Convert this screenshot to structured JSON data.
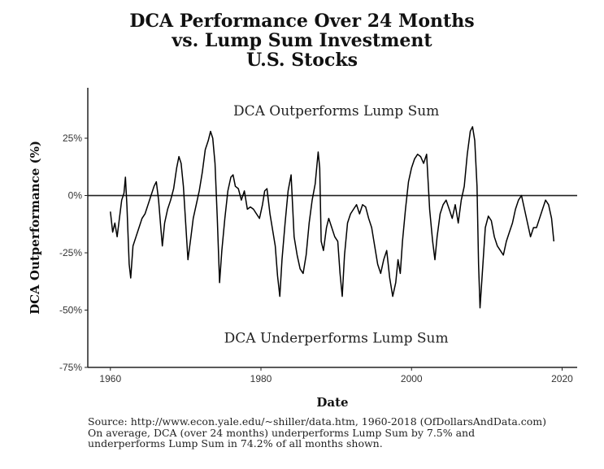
{
  "chart_data": {
    "type": "line",
    "title_lines": [
      "DCA Performance Over 24 Months",
      "vs. Lump Sum Investment",
      "U.S. Stocks"
    ],
    "xlabel": "Date",
    "ylabel": "DCA Outperformance (%)",
    "xlim": [
      1957,
      2022
    ],
    "ylim": [
      -75,
      47
    ],
    "x_ticks": [
      1960,
      1980,
      2000,
      2020
    ],
    "x_tick_labels": [
      "1960",
      "1980",
      "2000",
      "2020"
    ],
    "y_ticks": [
      25,
      0,
      -25,
      -50,
      -75
    ],
    "y_tick_labels": [
      "25%",
      "0%",
      "-25%",
      "-50%",
      "-75%"
    ],
    "grid": false,
    "reference_line": 0,
    "annotations": [
      {
        "text": "DCA Outperforms Lump Sum",
        "x": 1990,
        "y": 37
      },
      {
        "text": "DCA Underperforms Lump Sum",
        "x": 1990,
        "y": -62
      }
    ],
    "series": [
      {
        "color": "#000000",
        "points": [
          [
            1960.0,
            -7
          ],
          [
            1960.3,
            -16
          ],
          [
            1960.6,
            -12
          ],
          [
            1960.9,
            -18
          ],
          [
            1961.2,
            -10
          ],
          [
            1961.5,
            -2
          ],
          [
            1961.8,
            1
          ],
          [
            1962.0,
            8
          ],
          [
            1962.2,
            -5
          ],
          [
            1962.5,
            -30
          ],
          [
            1962.7,
            -36
          ],
          [
            1963.0,
            -22
          ],
          [
            1963.4,
            -18
          ],
          [
            1963.8,
            -14
          ],
          [
            1964.2,
            -10
          ],
          [
            1964.6,
            -8
          ],
          [
            1965.0,
            -4
          ],
          [
            1965.4,
            0
          ],
          [
            1965.8,
            4
          ],
          [
            1966.1,
            6
          ],
          [
            1966.4,
            -2
          ],
          [
            1966.7,
            -14
          ],
          [
            1966.9,
            -22
          ],
          [
            1967.2,
            -12
          ],
          [
            1967.6,
            -6
          ],
          [
            1968.0,
            -2
          ],
          [
            1968.4,
            3
          ],
          [
            1968.8,
            12
          ],
          [
            1969.1,
            17
          ],
          [
            1969.4,
            14
          ],
          [
            1969.7,
            4
          ],
          [
            1970.0,
            -12
          ],
          [
            1970.3,
            -28
          ],
          [
            1970.7,
            -18
          ],
          [
            1971.0,
            -10
          ],
          [
            1971.4,
            -4
          ],
          [
            1971.8,
            2
          ],
          [
            1972.2,
            10
          ],
          [
            1972.6,
            20
          ],
          [
            1973.0,
            24
          ],
          [
            1973.3,
            28
          ],
          [
            1973.6,
            25
          ],
          [
            1973.9,
            14
          ],
          [
            1974.2,
            -10
          ],
          [
            1974.5,
            -38
          ],
          [
            1974.8,
            -24
          ],
          [
            1975.2,
            -10
          ],
          [
            1975.6,
            2
          ],
          [
            1976.0,
            8
          ],
          [
            1976.3,
            9
          ],
          [
            1976.6,
            4
          ],
          [
            1977.0,
            3
          ],
          [
            1977.4,
            -2
          ],
          [
            1977.8,
            2
          ],
          [
            1978.2,
            -6
          ],
          [
            1978.6,
            -5
          ],
          [
            1979.0,
            -6
          ],
          [
            1979.4,
            -8
          ],
          [
            1979.8,
            -10
          ],
          [
            1980.2,
            -4
          ],
          [
            1980.5,
            2
          ],
          [
            1980.8,
            3
          ],
          [
            1981.2,
            -8
          ],
          [
            1981.6,
            -16
          ],
          [
            1981.9,
            -22
          ],
          [
            1982.2,
            -35
          ],
          [
            1982.5,
            -44
          ],
          [
            1982.8,
            -28
          ],
          [
            1983.2,
            -12
          ],
          [
            1983.6,
            2
          ],
          [
            1984.0,
            9
          ],
          [
            1984.4,
            -18
          ],
          [
            1984.8,
            -26
          ],
          [
            1985.2,
            -32
          ],
          [
            1985.6,
            -34
          ],
          [
            1986.0,
            -26
          ],
          [
            1986.4,
            -12
          ],
          [
            1986.8,
            -2
          ],
          [
            1987.2,
            5
          ],
          [
            1987.6,
            19
          ],
          [
            1987.8,
            12
          ],
          [
            1988.0,
            -20
          ],
          [
            1988.3,
            -24
          ],
          [
            1988.7,
            -14
          ],
          [
            1989.0,
            -10
          ],
          [
            1989.4,
            -14
          ],
          [
            1989.8,
            -18
          ],
          [
            1990.2,
            -20
          ],
          [
            1990.5,
            -34
          ],
          [
            1990.8,
            -44
          ],
          [
            1991.1,
            -26
          ],
          [
            1991.5,
            -12
          ],
          [
            1991.9,
            -8
          ],
          [
            1992.3,
            -6
          ],
          [
            1992.7,
            -4
          ],
          [
            1993.1,
            -8
          ],
          [
            1993.5,
            -4
          ],
          [
            1993.9,
            -5
          ],
          [
            1994.3,
            -10
          ],
          [
            1994.7,
            -14
          ],
          [
            1995.1,
            -22
          ],
          [
            1995.5,
            -30
          ],
          [
            1995.9,
            -34
          ],
          [
            1996.3,
            -28
          ],
          [
            1996.7,
            -24
          ],
          [
            1997.1,
            -36
          ],
          [
            1997.5,
            -44
          ],
          [
            1997.9,
            -38
          ],
          [
            1998.2,
            -28
          ],
          [
            1998.5,
            -34
          ],
          [
            1998.8,
            -20
          ],
          [
            1999.2,
            -6
          ],
          [
            1999.6,
            6
          ],
          [
            2000.0,
            12
          ],
          [
            2000.4,
            16
          ],
          [
            2000.8,
            18
          ],
          [
            2001.2,
            17
          ],
          [
            2001.6,
            14
          ],
          [
            2002.0,
            18
          ],
          [
            2002.4,
            -6
          ],
          [
            2002.8,
            -20
          ],
          [
            2003.1,
            -28
          ],
          [
            2003.4,
            -18
          ],
          [
            2003.8,
            -8
          ],
          [
            2004.2,
            -4
          ],
          [
            2004.6,
            -2
          ],
          [
            2005.0,
            -6
          ],
          [
            2005.4,
            -10
          ],
          [
            2005.8,
            -4
          ],
          [
            2006.2,
            -12
          ],
          [
            2006.6,
            -2
          ],
          [
            2007.0,
            4
          ],
          [
            2007.4,
            18
          ],
          [
            2007.8,
            28
          ],
          [
            2008.1,
            30
          ],
          [
            2008.4,
            24
          ],
          [
            2008.7,
            4
          ],
          [
            2008.9,
            -30
          ],
          [
            2009.1,
            -49
          ],
          [
            2009.4,
            -34
          ],
          [
            2009.8,
            -14
          ],
          [
            2010.2,
            -9
          ],
          [
            2010.6,
            -11
          ],
          [
            2011.0,
            -18
          ],
          [
            2011.4,
            -22
          ],
          [
            2011.8,
            -24
          ],
          [
            2012.2,
            -26
          ],
          [
            2012.6,
            -20
          ],
          [
            2013.0,
            -16
          ],
          [
            2013.4,
            -12
          ],
          [
            2013.8,
            -6
          ],
          [
            2014.2,
            -2
          ],
          [
            2014.6,
            0
          ],
          [
            2015.0,
            -6
          ],
          [
            2015.4,
            -12
          ],
          [
            2015.8,
            -18
          ],
          [
            2016.2,
            -14
          ],
          [
            2016.6,
            -14
          ],
          [
            2017.0,
            -10
          ],
          [
            2017.4,
            -6
          ],
          [
            2017.8,
            -2
          ],
          [
            2018.2,
            -4
          ],
          [
            2018.6,
            -10
          ],
          [
            2018.9,
            -20
          ]
        ]
      }
    ]
  },
  "footer": {
    "source_lines": [
      "Source:  http://www.econ.yale.edu/~shiller/data.htm, 1960-2018 (OfDollarsAndData.com)",
      "On average, DCA (over 24 months) underperforms Lump Sum by 7.5% and",
      "underperforms Lump Sum in 74.2% of all months shown."
    ]
  }
}
